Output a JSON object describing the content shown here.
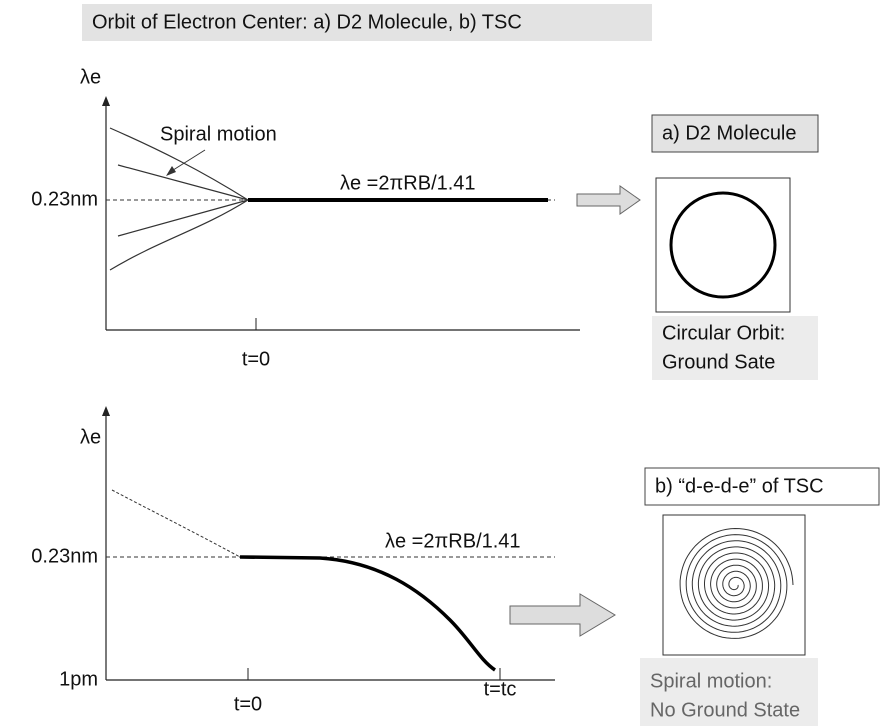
{
  "title": "Orbit of Electron Center: a) D2 Molecule, b) TSC",
  "panel_a": {
    "y_label": "λe",
    "y_tick": "0.23nm",
    "annotation": "Spiral motion",
    "equation": "λe =2πRB/1.41",
    "x_tick": "t=0",
    "box_title": "a) D2 Molecule",
    "caption": [
      "Circular Orbit:",
      "Ground Sate"
    ]
  },
  "panel_b": {
    "y_label": "λe",
    "y_tick_top": "0.23nm",
    "y_tick_bottom": "1pm",
    "equation": "λe =2πRB/1.41",
    "x_tick_start": "t=0",
    "x_tick_end": "t=tc",
    "box_title": "b) “d-e-d-e” of TSC",
    "caption": [
      "Spiral motion:",
      "No Ground State"
    ]
  }
}
